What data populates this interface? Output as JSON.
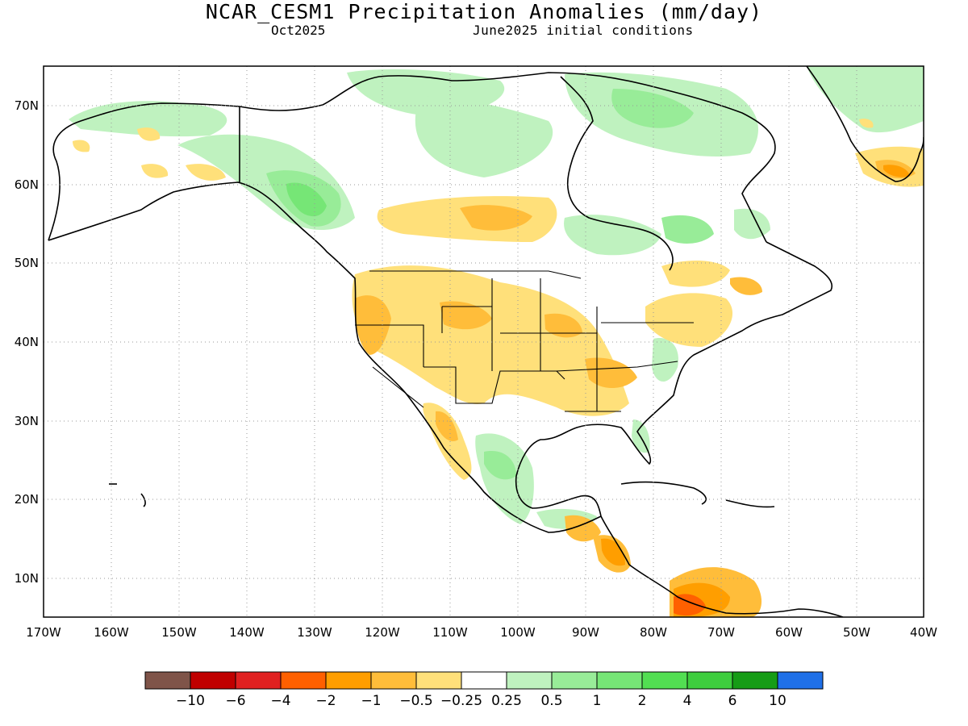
{
  "header": {
    "title": "NCAR_CESM1 Precipitation Anomalies (mm/day)",
    "valid_month": "Oct2025",
    "init_conditions": "June2025 initial conditions"
  },
  "map": {
    "lon_ticks": [
      "170W",
      "160W",
      "150W",
      "140W",
      "130W",
      "120W",
      "110W",
      "100W",
      "90W",
      "80W",
      "70W",
      "60W",
      "50W",
      "40W"
    ],
    "lat_ticks": [
      "10N",
      "20N",
      "30N",
      "40N",
      "50N",
      "60N",
      "70N"
    ],
    "lon_range": [
      -170,
      -40
    ],
    "lat_range": [
      5,
      75
    ],
    "grid": true
  },
  "colorbar": {
    "colors": [
      "#7f5449",
      "#c00000",
      "#e02020",
      "#ff6000",
      "#ff9e00",
      "#ffbd3a",
      "#ffe07a",
      "#ffffff",
      "#bff2bf",
      "#98ec98",
      "#76e676",
      "#52de52",
      "#3ecd3e",
      "#169c16",
      "#1f70e8"
    ],
    "labels": [
      "−10",
      "−6",
      "−4",
      "−2",
      "−1",
      "−0.5",
      "−0.25",
      "0.25",
      "0.5",
      "1",
      "2",
      "4",
      "6",
      "10"
    ]
  }
}
